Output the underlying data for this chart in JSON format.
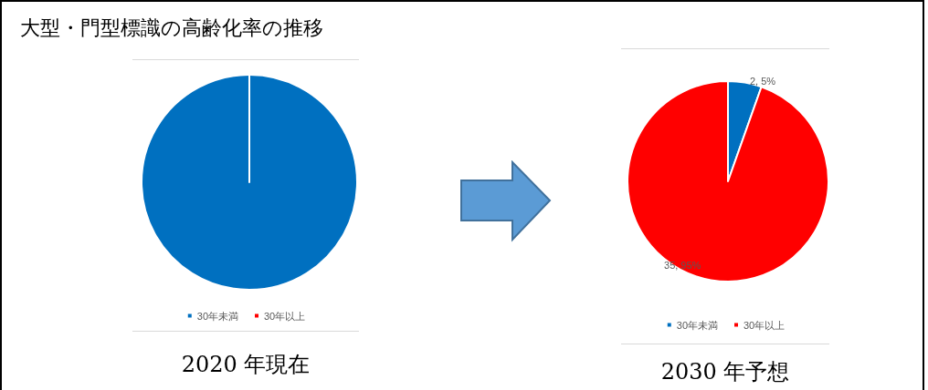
{
  "chart_data": [
    {
      "type": "pie",
      "title": "大型・門型標識の高齢化率の推移",
      "categories": [
        "30年未満",
        "30年以上"
      ],
      "values": [
        100,
        0
      ],
      "colors": [
        "#0070c0",
        "#ff0000"
      ],
      "legend": "bottom",
      "annotations": [
        "2020 年現在"
      ]
    },
    {
      "type": "pie",
      "categories": [
        "30年未満",
        "30年以上"
      ],
      "values": [
        2,
        35
      ],
      "colors": [
        "#0070c0",
        "#ff0000"
      ],
      "value_labels": [
        "2, 5%",
        "35, 95%"
      ],
      "legend": "bottom",
      "annotations": [
        "2030 年予想"
      ]
    }
  ]
}
